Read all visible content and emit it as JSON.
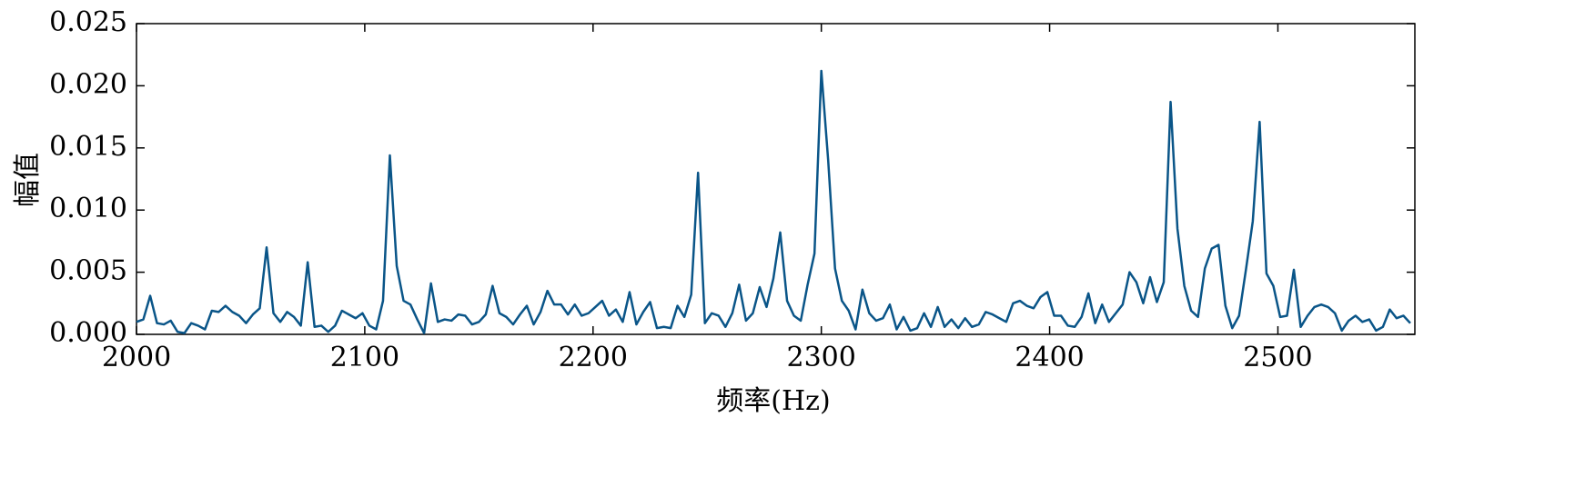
{
  "chart_data": {
    "type": "line",
    "xlabel": "频率(Hz)",
    "ylabel": "幅值",
    "x": [
      2000,
      2003,
      2006,
      2009,
      2012,
      2015,
      2018,
      2021,
      2024,
      2027,
      2030,
      2033,
      2036,
      2039,
      2042,
      2045,
      2048,
      2051,
      2054,
      2057,
      2060,
      2063,
      2066,
      2069,
      2072,
      2075,
      2078,
      2081,
      2084,
      2087,
      2090,
      2093,
      2096,
      2099,
      2102,
      2105,
      2108,
      2111,
      2114,
      2117,
      2120,
      2123,
      2126,
      2129,
      2132,
      2135,
      2138,
      2141,
      2144,
      2147,
      2150,
      2153,
      2156,
      2159,
      2162,
      2165,
      2168,
      2171,
      2174,
      2177,
      2180,
      2183,
      2186,
      2189,
      2192,
      2195,
      2198,
      2201,
      2204,
      2207,
      2210,
      2213,
      2216,
      2219,
      2222,
      2225,
      2228,
      2231,
      2234,
      2237,
      2240,
      2243,
      2246,
      2249,
      2252,
      2255,
      2258,
      2261,
      2264,
      2267,
      2270,
      2273,
      2276,
      2279,
      2282,
      2285,
      2288,
      2291,
      2294,
      2297,
      2300,
      2303,
      2306,
      2309,
      2312,
      2315,
      2318,
      2321,
      2324,
      2327,
      2330,
      2333,
      2336,
      2339,
      2342,
      2345,
      2348,
      2351,
      2354,
      2357,
      2360,
      2363,
      2366,
      2369,
      2372,
      2375,
      2378,
      2381,
      2384,
      2387,
      2390,
      2393,
      2396,
      2399,
      2402,
      2405,
      2408,
      2411,
      2414,
      2417,
      2420,
      2423,
      2426,
      2429,
      2432,
      2435,
      2438,
      2441,
      2444,
      2447,
      2450,
      2453,
      2456,
      2459,
      2462,
      2465,
      2468,
      2471,
      2474,
      2477,
      2480,
      2483,
      2486,
      2489,
      2492,
      2495,
      2498,
      2501,
      2504,
      2507,
      2510,
      2513,
      2516,
      2519,
      2522,
      2525,
      2528,
      2531,
      2534,
      2537,
      2540,
      2543,
      2546,
      2549,
      2552,
      2555,
      2558
    ],
    "series": [
      {
        "color": "#0a5588",
        "values": [
          0.001,
          0.0012,
          0.0031,
          0.0009,
          0.0008,
          0.0011,
          0.0002,
          0.0001,
          0.0009,
          0.0007,
          0.0004,
          0.0019,
          0.0018,
          0.0023,
          0.0018,
          0.0015,
          0.0009,
          0.0016,
          0.0021,
          0.007,
          0.0017,
          0.001,
          0.0018,
          0.0014,
          0.0007,
          0.0058,
          0.0006,
          0.0007,
          0.0002,
          0.0007,
          0.0019,
          0.0016,
          0.0013,
          0.0017,
          0.0007,
          0.0004,
          0.0027,
          0.0144,
          0.0055,
          0.0027,
          0.0024,
          0.0012,
          0.0001,
          0.0041,
          0.001,
          0.0012,
          0.0011,
          0.0016,
          0.0015,
          0.0008,
          0.001,
          0.0016,
          0.0039,
          0.0017,
          0.0014,
          0.0008,
          0.0016,
          0.0023,
          0.0008,
          0.0018,
          0.0035,
          0.0024,
          0.0024,
          0.0016,
          0.0024,
          0.0015,
          0.0017,
          0.0022,
          0.0027,
          0.0015,
          0.002,
          0.001,
          0.0034,
          0.0008,
          0.0018,
          0.0026,
          0.0005,
          0.0006,
          0.0005,
          0.0023,
          0.0014,
          0.0032,
          0.013,
          0.0009,
          0.0017,
          0.0015,
          0.0006,
          0.0017,
          0.004,
          0.0011,
          0.0017,
          0.0038,
          0.0022,
          0.0045,
          0.0082,
          0.0027,
          0.0015,
          0.0011,
          0.004,
          0.0065,
          0.0212,
          0.014,
          0.0053,
          0.0027,
          0.0019,
          0.0004,
          0.0036,
          0.0017,
          0.0011,
          0.0013,
          0.0024,
          0.0004,
          0.0014,
          0.0003,
          0.0005,
          0.0017,
          0.0006,
          0.0022,
          0.0006,
          0.0012,
          0.0005,
          0.0013,
          0.0006,
          0.0008,
          0.0018,
          0.0016,
          0.0013,
          0.001,
          0.0025,
          0.0027,
          0.0023,
          0.0021,
          0.003,
          0.0034,
          0.0015,
          0.0015,
          0.0007,
          0.0006,
          0.0014,
          0.0033,
          0.0009,
          0.0024,
          0.001,
          0.0017,
          0.0024,
          0.005,
          0.0042,
          0.0025,
          0.0046,
          0.0026,
          0.0042,
          0.0187,
          0.0085,
          0.0039,
          0.0019,
          0.0014,
          0.0053,
          0.0069,
          0.0072,
          0.0023,
          0.0005,
          0.0015,
          0.0052,
          0.0091,
          0.0171,
          0.0049,
          0.0039,
          0.0014,
          0.0015,
          0.0052,
          0.0006,
          0.0015,
          0.0022,
          0.0024,
          0.0022,
          0.0017,
          0.0003,
          0.0011,
          0.0015,
          0.001,
          0.0012,
          0.0003,
          0.0006,
          0.002,
          0.0013,
          0.0015,
          0.0009
        ]
      }
    ],
    "xlim": [
      2000,
      2560
    ],
    "xticks": [
      2000,
      2100,
      2200,
      2300,
      2400,
      2500
    ],
    "ylim": [
      0,
      0.025
    ],
    "yticks": [
      {
        "value": 0,
        "label": "0.000"
      },
      {
        "value": 0.005,
        "label": "0.005"
      },
      {
        "value": 0.01,
        "label": "0.010"
      },
      {
        "value": 0.015,
        "label": "0.015"
      },
      {
        "value": 0.02,
        "label": "0.020"
      },
      {
        "value": 0.025,
        "label": "0.025"
      }
    ]
  }
}
